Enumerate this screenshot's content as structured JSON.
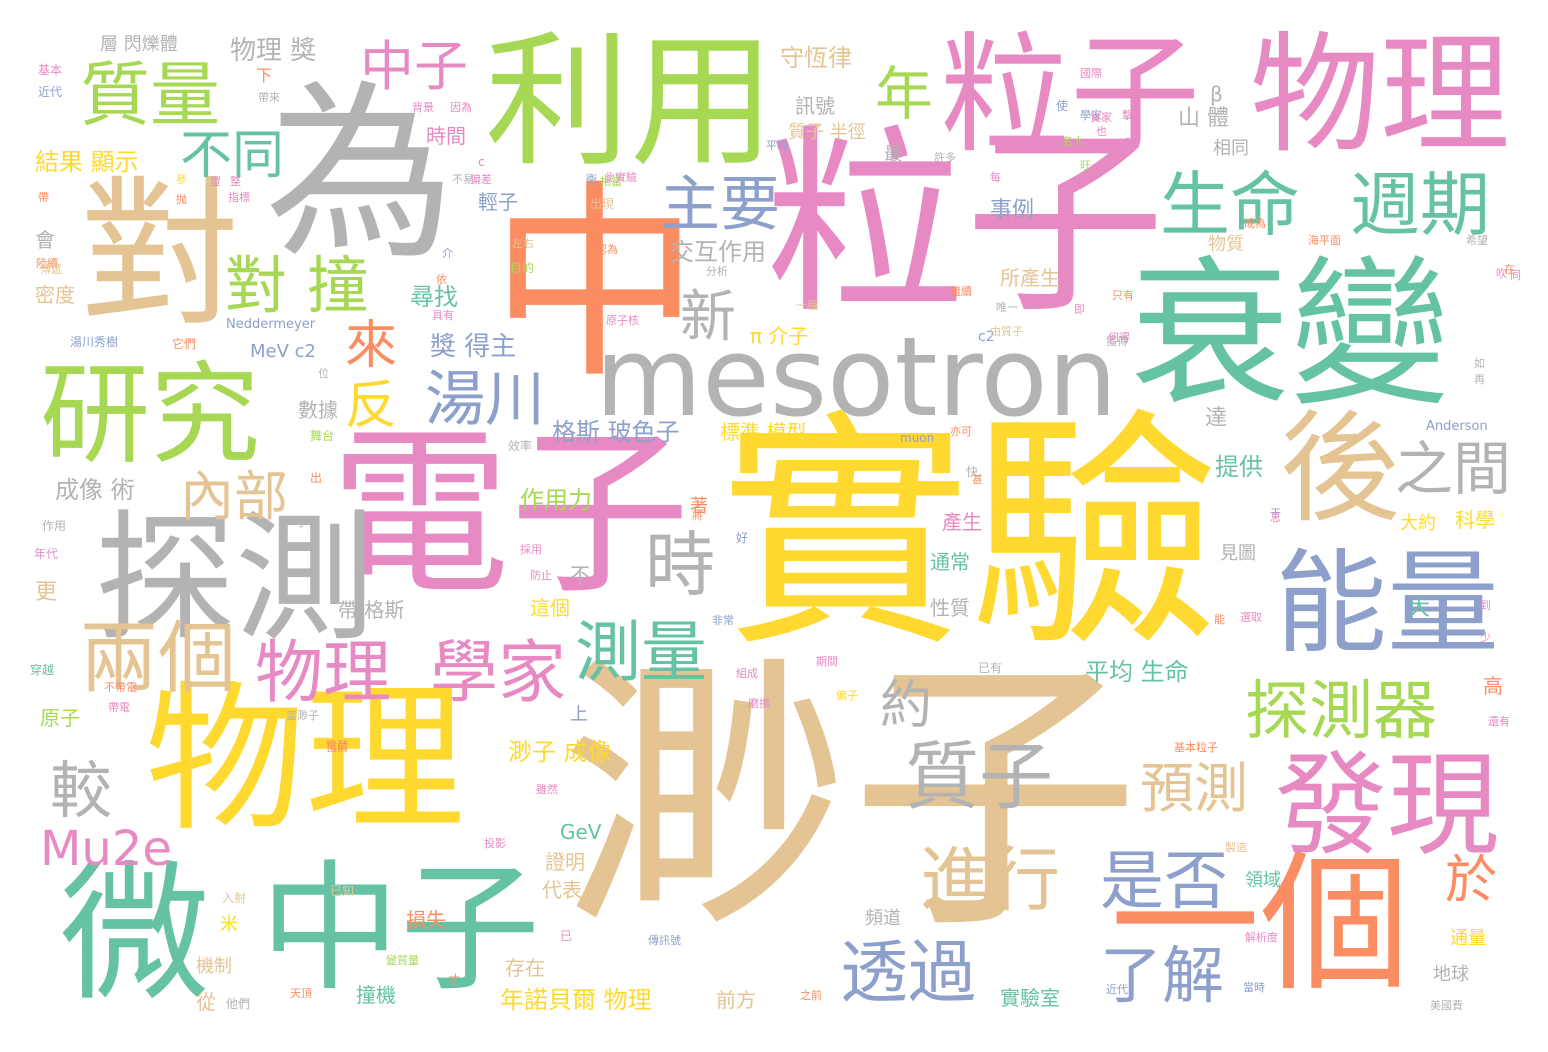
{
  "palette": {
    "pink": "#e78ac3",
    "gold": "#ffd92f",
    "tan": "#e5c494",
    "green": "#66c2a5",
    "gray": "#b3b3b3",
    "lime": "#a6d854",
    "blue": "#8da0cb",
    "orange": "#fc8d62"
  },
  "words": [
    {
      "id": "w-miaozi",
      "text": "渺子",
      "color": "#e5c494"
    },
    {
      "id": "w-shiyan",
      "text": "實驗",
      "color": "#ffd92f"
    },
    {
      "id": "w-dianzi",
      "text": "電子",
      "color": "#e78ac3"
    },
    {
      "id": "w-lizi-big",
      "text": "粒子",
      "color": "#e78ac3"
    },
    {
      "id": "w-mesotron",
      "text": "mesotron",
      "color": "#b3b3b3"
    },
    {
      "id": "w-shuaibian",
      "text": "衰變",
      "color": "#66c2a5"
    },
    {
      "id": "w-wei",
      "text": "為",
      "color": "#b3b3b3"
    },
    {
      "id": "w-zhong",
      "text": "中",
      "color": "#fc8d62"
    },
    {
      "id": "w-liyong",
      "text": "利用",
      "color": "#a6d854"
    },
    {
      "id": "w-dui",
      "text": "對",
      "color": "#e5c494"
    },
    {
      "id": "w-wuli-main",
      "text": "物理",
      "color": "#ffd92f"
    },
    {
      "id": "w-wuli-top",
      "text": "物理",
      "color": "#e78ac3"
    },
    {
      "id": "w-lizi-top",
      "text": "粒子",
      "color": "#e78ac3"
    },
    {
      "id": "w-tance",
      "text": "探測",
      "color": "#b3b3b3"
    },
    {
      "id": "w-yige",
      "text": "一個",
      "color": "#fc8d62"
    },
    {
      "id": "w-zhongzi-big",
      "text": "中子",
      "color": "#66c2a5"
    },
    {
      "id": "w-wei2",
      "text": "微",
      "color": "#66c2a5"
    },
    {
      "id": "w-yanjiu",
      "text": "研究",
      "color": "#a6d854"
    },
    {
      "id": "w-nengliang",
      "text": "能量",
      "color": "#8da0cb"
    },
    {
      "id": "w-faxian",
      "text": "發現",
      "color": "#e78ac3"
    },
    {
      "id": "w-hou",
      "text": "後",
      "color": "#e5c494"
    },
    {
      "id": "w-shengming",
      "text": "生命",
      "color": "#66c2a5"
    },
    {
      "id": "w-zhouqi",
      "text": "週期",
      "color": "#66c2a5"
    },
    {
      "id": "w-tanceqi",
      "text": "探測器",
      "color": "#a6d854"
    },
    {
      "id": "w-liangge",
      "text": "兩個",
      "color": "#e5c494"
    },
    {
      "id": "w-wuli-mid",
      "text": "物理",
      "color": "#e78ac3"
    },
    {
      "id": "w-xuejia",
      "text": "學家",
      "color": "#e78ac3"
    },
    {
      "id": "w-zhizi",
      "text": "質子",
      "color": "#b3b3b3"
    },
    {
      "id": "w-celiang",
      "text": "測量",
      "color": "#66c2a5"
    },
    {
      "id": "w-toumguo",
      "text": "透過",
      "color": "#8da0cb"
    },
    {
      "id": "w-jinxing",
      "text": "進行",
      "color": "#e5c494"
    },
    {
      "id": "w-shifou",
      "text": "是否",
      "color": "#8da0cb"
    },
    {
      "id": "w-liaojie",
      "text": "了解",
      "color": "#8da0cb"
    },
    {
      "id": "w-zhiliang",
      "text": "質量",
      "color": "#a6d854"
    },
    {
      "id": "w-duizhuang",
      "text": "對 撞",
      "color": "#a6d854"
    },
    {
      "id": "w-zhuyao",
      "text": "主要",
      "color": "#8da0cb"
    },
    {
      "id": "w-tangchuan",
      "text": "湯川",
      "color": "#8da0cb"
    },
    {
      "id": "w-shi",
      "text": "時",
      "color": "#b3b3b3"
    },
    {
      "id": "w-zhijian",
      "text": "之間",
      "color": "#b3b3b3"
    },
    {
      "id": "w-zhongzi-top",
      "text": "中子",
      "color": "#e78ac3"
    },
    {
      "id": "w-nian",
      "text": "年",
      "color": "#a6d854"
    },
    {
      "id": "w-butong",
      "text": "不同",
      "color": "#66c2a5"
    },
    {
      "id": "w-laifan",
      "text": "來",
      "color": "#fc8d62"
    },
    {
      "id": "w-fan",
      "text": "反",
      "color": "#ffd92f"
    },
    {
      "id": "w-neibu",
      "text": "內部",
      "color": "#e5c494"
    },
    {
      "id": "w-xin",
      "text": "新",
      "color": "#b3b3b3"
    },
    {
      "id": "w-yue",
      "text": "約",
      "color": "#b3b3b3"
    },
    {
      "id": "w-jiao",
      "text": "較",
      "color": "#b3b3b3"
    },
    {
      "id": "w-yuce",
      "text": "預測",
      "color": "#e5c494"
    },
    {
      "id": "w-mu2e",
      "text": "Mu2e",
      "color": "#e78ac3"
    },
    {
      "id": "w-yu",
      "text": "於",
      "color": "#fc8d62"
    },
    {
      "id": "w-wuli-jiang",
      "text": "物理 獎",
      "color": "#b3b3b3"
    },
    {
      "id": "w-shougenglv",
      "text": "守恆律",
      "color": "#e5c494"
    },
    {
      "id": "w-jiegou",
      "text": "結果 顯示",
      "color": "#ffd92f"
    },
    {
      "id": "w-jiaohu",
      "text": "交互作用",
      "color": "#b3b3b3"
    },
    {
      "id": "w-jiang",
      "text": "獎 得主",
      "color": "#8da0cb"
    },
    {
      "id": "w-gesi",
      "text": "格斯 玻色子",
      "color": "#8da0cb"
    },
    {
      "id": "w-chengxiangshu",
      "text": "成像 術",
      "color": "#b3b3b3"
    },
    {
      "id": "w-zuoyongli",
      "text": "作用力",
      "color": "#a6d854"
    },
    {
      "id": "w-tigong",
      "text": "提供",
      "color": "#66c2a5"
    },
    {
      "id": "w-xunzhao",
      "text": "尋找",
      "color": "#66c2a5"
    },
    {
      "id": "w-pingjun",
      "text": "平均 生命",
      "color": "#66c2a5"
    },
    {
      "id": "w-miaozi-cheng",
      "text": "渺子 成像",
      "color": "#ffd92f"
    },
    {
      "id": "w-nuobeier",
      "text": "年諾貝爾 物理",
      "color": "#ffd92f"
    },
    {
      "id": "w-mev",
      "text": "MeV c2",
      "color": "#8da0cb"
    },
    {
      "id": "w-pijiezi",
      "text": "π 介子",
      "color": "#ffd92f"
    },
    {
      "id": "w-xunhao",
      "text": "訊號",
      "color": "#b3b3b3"
    },
    {
      "id": "w-zhizi-banjing",
      "text": "質子 半徑",
      "color": "#e5c494"
    },
    {
      "id": "w-shanti",
      "text": "山 體",
      "color": "#b3b3b3"
    },
    {
      "id": "w-shijian",
      "text": "時間",
      "color": "#e78ac3"
    },
    {
      "id": "w-shili",
      "text": "事例",
      "color": "#8da0cb"
    },
    {
      "id": "w-suochansheng",
      "text": "所產生",
      "color": "#e5c494"
    },
    {
      "id": "w-biaozhun",
      "text": "標準 模型",
      "color": "#ffd92f"
    },
    {
      "id": "w-gev",
      "text": "GeV",
      "color": "#66c2a5"
    },
    {
      "id": "w-zhengming",
      "text": "證明",
      "color": "#e5c494"
    },
    {
      "id": "w-daibiao",
      "text": "代表",
      "color": "#e5c494"
    },
    {
      "id": "w-sunshi",
      "text": "損失",
      "color": "#fc8d62"
    },
    {
      "id": "w-cunzai",
      "text": "存在",
      "color": "#e5c494"
    },
    {
      "id": "w-zhuangji",
      "text": "撞機",
      "color": "#66c2a5"
    },
    {
      "id": "w-qianfang",
      "text": "前方",
      "color": "#e5c494"
    },
    {
      "id": "w-pindao",
      "text": "頻道",
      "color": "#b3b3b3"
    },
    {
      "id": "w-lingyu",
      "text": "領域",
      "color": "#66c2a5"
    },
    {
      "id": "w-shiyanshi",
      "text": "實驗室",
      "color": "#66c2a5"
    },
    {
      "id": "w-diqiu",
      "text": "地球",
      "color": "#b3b3b3"
    },
    {
      "id": "w-tongchang",
      "text": "通常",
      "color": "#66c2a5"
    },
    {
      "id": "w-xingzhi",
      "text": "性質",
      "color": "#b3b3b3"
    },
    {
      "id": "w-chansheng",
      "text": "產生",
      "color": "#e78ac3"
    },
    {
      "id": "w-kexue",
      "text": "科學",
      "color": "#ffd92f"
    },
    {
      "id": "w-dayue",
      "text": "大約",
      "color": "#ffd92f"
    },
    {
      "id": "w-jiantu",
      "text": "見圖",
      "color": "#b3b3b3"
    },
    {
      "id": "w-zheige",
      "text": "這個",
      "color": "#ffd92f"
    },
    {
      "id": "w-bu",
      "text": "不",
      "color": "#b3b3b3"
    },
    {
      "id": "w-da",
      "text": "大",
      "color": "#66c2a5"
    },
    {
      "id": "w-shang",
      "text": "上",
      "color": "#8da0cb"
    },
    {
      "id": "w-dai-gesi",
      "text": "帶 格斯",
      "color": "#b3b3b3"
    },
    {
      "id": "w-shuju",
      "text": "數據",
      "color": "#b3b3b3"
    },
    {
      "id": "w-yuanzi",
      "text": "原子",
      "color": "#a6d854"
    },
    {
      "id": "w-midu",
      "text": "密度",
      "color": "#e5c494"
    },
    {
      "id": "w-hui",
      "text": "會",
      "color": "#b3b3b3"
    },
    {
      "id": "w-gen",
      "text": "更",
      "color": "#e5c494"
    },
    {
      "id": "w-jizhi",
      "text": "機制",
      "color": "#e5c494"
    },
    {
      "id": "w-cong",
      "text": "從",
      "color": "#e5c494"
    },
    {
      "id": "w-mi",
      "text": "米",
      "color": "#ffd92f"
    },
    {
      "id": "w-da2",
      "text": "達",
      "color": "#b3b3b3"
    },
    {
      "id": "w-tongliang",
      "text": "通量",
      "color": "#ffd92f"
    },
    {
      "id": "w-gao",
      "text": "高",
      "color": "#fc8d62"
    },
    {
      "id": "w-xiangtong",
      "text": "相同",
      "color": "#b3b3b3"
    },
    {
      "id": "w-wuzhi",
      "text": "物質",
      "color": "#e5c494"
    },
    {
      "id": "w-zui",
      "text": "最",
      "color": "#b3b3b3"
    },
    {
      "id": "w-qingzi",
      "text": "輕子",
      "color": "#8da0cb"
    },
    {
      "id": "w-beta",
      "text": "β",
      "color": "#b3b3b3"
    },
    {
      "id": "w-ceng",
      "text": "層 閃爍體",
      "color": "#b3b3b3"
    },
    {
      "id": "w-zhe",
      "text": "著",
      "color": "#fc8d62"
    },
    {
      "id": "w-xia",
      "text": "下",
      "color": "#fc8d62"
    },
    {
      "id": "w-muon",
      "text": "muon",
      "color": "#8da0cb"
    },
    {
      "id": "w-anderson",
      "text": "Anderson",
      "color": "#8da0cb"
    },
    {
      "id": "w-nedder",
      "text": "Neddermeyer",
      "color": "#8da0cb"
    },
    {
      "id": "w-c2",
      "text": "c2",
      "color": "#8da0cb"
    },
    {
      "id": "w-tangchuanxiushu",
      "text": "湯川秀樹",
      "color": "#8da0cb"
    },
    {
      "id": "w-tamen",
      "text": "它們",
      "color": "#fc8d62"
    },
    {
      "id": "w-jiben",
      "text": "基本",
      "color": "#e78ac3"
    },
    {
      "id": "w-jindai",
      "text": "近代",
      "color": "#8da0cb"
    },
    {
      "id": "w-xiaolv",
      "text": "效率",
      "color": "#b3b3b3"
    },
    {
      "id": "w-wutai",
      "text": "舞台",
      "color": "#a6d854"
    },
    {
      "id": "w-zuoyong",
      "text": "作用",
      "color": "#b3b3b3"
    },
    {
      "id": "w-niandai",
      "text": "年代",
      "color": "#e78ac3"
    },
    {
      "id": "w-chuantou",
      "text": "穿越",
      "color": "#66c2a5"
    },
    {
      "id": "w-bu-daidian",
      "text": "不帶電",
      "color": "#fc8d62"
    },
    {
      "id": "w-dangmiaozi",
      "text": "當渺子",
      "color": "#b3b3b3"
    },
    {
      "id": "w-yiyou",
      "text": "已有",
      "color": "#b3b3b3"
    },
    {
      "id": "w-jibenlizi",
      "text": "基本粒子",
      "color": "#fc8d62"
    },
    {
      "id": "w-ruse",
      "text": "入射",
      "color": "#e5c494"
    },
    {
      "id": "w-yizhi",
      "text": "已知",
      "color": "#e5c494"
    },
    {
      "id": "w-bianjiao",
      "text": "變質量",
      "color": "#a6d854"
    },
    {
      "id": "w-tianyuan",
      "text": "天頂",
      "color": "#fc8d62"
    },
    {
      "id": "w-tamen2",
      "text": "他們",
      "color": "#b3b3b3"
    },
    {
      "id": "w-cai",
      "text": "才",
      "color": "#fc8d62"
    },
    {
      "id": "w-zhiqian",
      "text": "之前",
      "color": "#fc8d62"
    },
    {
      "id": "w-jindai2",
      "text": "近代",
      "color": "#8da0cb"
    },
    {
      "id": "w-meiguo",
      "text": "美國費",
      "color": "#b3b3b3"
    },
    {
      "id": "w-dangshi",
      "text": "當時",
      "color": "#8da0cb"
    },
    {
      "id": "w-xiexi",
      "text": "解析度",
      "color": "#e78ac3"
    },
    {
      "id": "w-zhenkong",
      "text": "製造",
      "color": "#e5c494"
    },
    {
      "id": "w-feichang",
      "text": "非常",
      "color": "#8da0cb"
    },
    {
      "id": "w-hao",
      "text": "好",
      "color": "#8da0cb"
    },
    {
      "id": "w-xiao",
      "text": "小",
      "color": "#b3b3b3"
    },
    {
      "id": "w-chu",
      "text": "出",
      "color": "#fc8d62"
    },
    {
      "id": "w-chuxian",
      "text": "出現",
      "color": "#e5c494"
    },
    {
      "id": "w-rongjie",
      "text": "偏差",
      "color": "#e78ac3"
    },
    {
      "id": "w-mudi",
      "text": "目的",
      "color": "#a6d854"
    },
    {
      "id": "w-renwei",
      "text": "認為",
      "color": "#fc8d62"
    },
    {
      "id": "w-fenxi",
      "text": "分析",
      "color": "#b3b3b3"
    },
    {
      "id": "w-yizhong",
      "text": "一種",
      "color": "#e5c494"
    },
    {
      "id": "w-yuanzihe",
      "text": "原子核",
      "color": "#e78ac3"
    },
    {
      "id": "w-weiyi",
      "text": "唯一",
      "color": "#b3b3b3"
    },
    {
      "id": "w-youzhizi",
      "text": "由質子",
      "color": "#e5c494"
    },
    {
      "id": "w-jixu",
      "text": "繼續",
      "color": "#fc8d62"
    },
    {
      "id": "w-xuduo",
      "text": "許多",
      "color": "#b3b3b3"
    },
    {
      "id": "w-pingjun2",
      "text": "平均",
      "color": "#8da0cb"
    },
    {
      "id": "w-haiping",
      "text": "海平面",
      "color": "#fc8d62"
    },
    {
      "id": "w-xidi",
      "text": "希望",
      "color": "#b3b3b3"
    },
    {
      "id": "w-guoji",
      "text": "國際",
      "color": "#e78ac3"
    },
    {
      "id": "w-jiaren",
      "text": "學家",
      "color": "#8da0cb"
    },
    {
      "id": "w-shi2",
      "text": "使",
      "color": "#8da0cb"
    },
    {
      "id": "w-huode",
      "text": "獲得",
      "color": "#b3b3b3"
    },
    {
      "id": "w-keke",
      "text": "亦可",
      "color": "#fc8d62"
    },
    {
      "id": "w-kuai",
      "text": "快",
      "color": "#b3b3b3"
    },
    {
      "id": "w-yu2",
      "text": "于",
      "color": "#8da0cb"
    },
    {
      "id": "w-caiyong",
      "text": "採用",
      "color": "#e78ac3"
    },
    {
      "id": "w-fangzhi",
      "text": "防止",
      "color": "#e78ac3"
    },
    {
      "id": "w-xuanhe",
      "text": "選取",
      "color": "#e78ac3"
    },
    {
      "id": "w-chuansuo",
      "text": "磨擦",
      "color": "#e78ac3"
    },
    {
      "id": "w-pianzi",
      "text": "偏子",
      "color": "#ffd92f"
    },
    {
      "id": "w-qijian",
      "text": "期間",
      "color": "#e78ac3"
    },
    {
      "id": "w-zuocheng",
      "text": "組成",
      "color": "#e78ac3"
    },
    {
      "id": "w-zhengquzi",
      "text": "電荷",
      "color": "#fc8d62"
    },
    {
      "id": "w-daizheng",
      "text": "帶電",
      "color": "#e78ac3"
    },
    {
      "id": "w-tutoir",
      "text": "目前",
      "color": "#fc8d62"
    },
    {
      "id": "w-suiran",
      "text": "雖然",
      "color": "#e78ac3"
    },
    {
      "id": "w-xiaying",
      "text": "投影",
      "color": "#e78ac3"
    },
    {
      "id": "w-chuanxian",
      "text": "傳訊號",
      "color": "#8da0cb"
    },
    {
      "id": "w-yi",
      "text": "已",
      "color": "#e78ac3"
    },
    {
      "id": "w-mingren",
      "text": "名人",
      "color": "#a6d854"
    },
    {
      "id": "w-beige",
      "text": "背景",
      "color": "#e78ac3"
    },
    {
      "id": "w-yinwei",
      "text": "因為",
      "color": "#e78ac3"
    },
    {
      "id": "w-dailai",
      "text": "帶來",
      "color": "#b3b3b3"
    },
    {
      "id": "w-lunian",
      "text": "陸續",
      "color": "#fc8d62"
    },
    {
      "id": "w-chuanzao",
      "text": "傳遞",
      "color": "#e5c494"
    },
    {
      "id": "w-zhuizhe",
      "text": "指標",
      "color": "#e78ac3"
    },
    {
      "id": "w-c-sym",
      "text": "c",
      "color": "#e78ac3"
    },
    {
      "id": "w-xiaotai",
      "text": "相當",
      "color": "#a6d854"
    },
    {
      "id": "w-zheng",
      "text": "整",
      "color": "#e78ac3"
    },
    {
      "id": "w-bulai",
      "text": "不易",
      "color": "#b3b3b3"
    },
    {
      "id": "w-zhucai",
      "text": "參",
      "color": "#ffd92f"
    },
    {
      "id": "w-pao",
      "text": "抛",
      "color": "#fc8d62"
    },
    {
      "id": "w-hejin",
      "text": "介",
      "color": "#8da0cb"
    },
    {
      "id": "w-yuanzichu",
      "text": "衛",
      "color": "#8da0cb"
    },
    {
      "id": "w-qixiang",
      "text": "依",
      "color": "#fc8d62"
    },
    {
      "id": "w-zuoyou",
      "text": "左右",
      "color": "#e5c494"
    },
    {
      "id": "w-wei-xiang",
      "text": "位",
      "color": "#b3b3b3"
    },
    {
      "id": "w-jing",
      "text": "擊",
      "color": "#e78ac3"
    },
    {
      "id": "w-ye",
      "text": "也",
      "color": "#e78ac3"
    },
    {
      "id": "w-shihou",
      "text": "成為",
      "color": "#fc8d62"
    },
    {
      "id": "w-lishu",
      "text": "帶",
      "color": "#fc8d62"
    },
    {
      "id": "w-tiantu",
      "text": "在",
      "color": "#fc8d62"
    },
    {
      "id": "w-zhici",
      "text": "此實驗",
      "color": "#e78ac3"
    },
    {
      "id": "w-feng",
      "text": "豐",
      "color": "#e78ac3"
    },
    {
      "id": "w-mei",
      "text": "每",
      "color": "#e78ac3"
    },
    {
      "id": "w-jiang2",
      "text": "將",
      "color": "#fc8d62"
    },
    {
      "id": "w-shen",
      "text": "甚",
      "color": "#fc8d62"
    },
    {
      "id": "w-wang",
      "text": "旺",
      "color": "#a6d854"
    },
    {
      "id": "w-juyou",
      "text": "具有",
      "color": "#e78ac3"
    },
    {
      "id": "w-hechuan",
      "text": "何得",
      "color": "#e78ac3"
    },
    {
      "id": "w-zhiyou",
      "text": "只有",
      "color": "#fc8d62"
    },
    {
      "id": "w-dao",
      "text": "到",
      "color": "#e78ac3"
    },
    {
      "id": "w-ru",
      "text": "如",
      "color": "#b3b3b3"
    },
    {
      "id": "w-zai2",
      "text": "再",
      "color": "#b3b3b3"
    },
    {
      "id": "w-leng",
      "text": "能",
      "color": "#fc8d62"
    },
    {
      "id": "w-qingyou",
      "text": "還有",
      "color": "#e78ac3"
    },
    {
      "id": "w-shao",
      "text": "少",
      "color": "#e78ac3"
    },
    {
      "id": "w-ji",
      "text": "即",
      "color": "#e78ac3"
    },
    {
      "id": "w-chui",
      "text": "吹",
      "color": "#e78ac3"
    },
    {
      "id": "w-shiku",
      "text": "實家",
      "color": "#e78ac3"
    },
    {
      "id": "w-xipo",
      "text": "息",
      "color": "#e78ac3"
    },
    {
      "id": "w-tongbu",
      "text": "同",
      "color": "#e78ac3"
    }
  ]
}
